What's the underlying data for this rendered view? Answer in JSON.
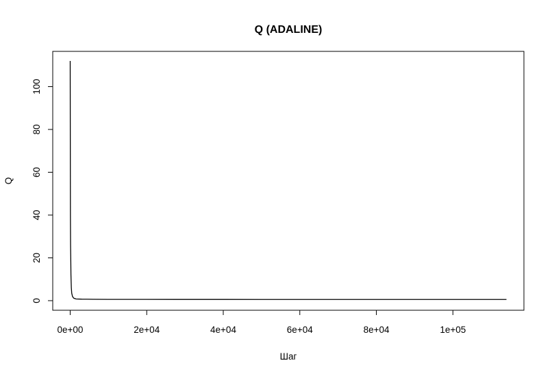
{
  "chart_data": {
    "type": "line",
    "title": "Q (ADALINE)",
    "xlabel": "Шаг",
    "ylabel": "Q",
    "xlim": [
      -4560,
      118560
    ],
    "ylim": [
      -4.48,
      116.48
    ],
    "grid": false,
    "x_ticks": [
      {
        "value": 0,
        "label": "0e+00"
      },
      {
        "value": 20000,
        "label": "2e+04"
      },
      {
        "value": 40000,
        "label": "4e+04"
      },
      {
        "value": 60000,
        "label": "6e+04"
      },
      {
        "value": 80000,
        "label": "8e+04"
      },
      {
        "value": 100000,
        "label": "1e+05"
      }
    ],
    "y_ticks": [
      {
        "value": 0,
        "label": "0"
      },
      {
        "value": 20,
        "label": "20"
      },
      {
        "value": 40,
        "label": "40"
      },
      {
        "value": 60,
        "label": "60"
      },
      {
        "value": 80,
        "label": "80"
      },
      {
        "value": 100,
        "label": "100"
      }
    ],
    "series": [
      {
        "color": "#000000",
        "x": [
          1,
          30,
          60,
          100,
          150,
          200,
          300,
          400,
          600,
          900,
          1500,
          3000,
          6000,
          10000,
          20000,
          30000,
          40000,
          50000,
          60000,
          70000,
          80000,
          90000,
          100000,
          110000,
          114000
        ],
        "y": [
          112,
          75,
          40,
          26,
          20,
          12,
          6,
          3.5,
          2,
          1.2,
          0.8,
          0.7,
          0.65,
          0.6,
          0.6,
          0.58,
          0.58,
          0.57,
          0.57,
          0.57,
          0.56,
          0.56,
          0.56,
          0.56,
          0.56
        ]
      }
    ]
  }
}
